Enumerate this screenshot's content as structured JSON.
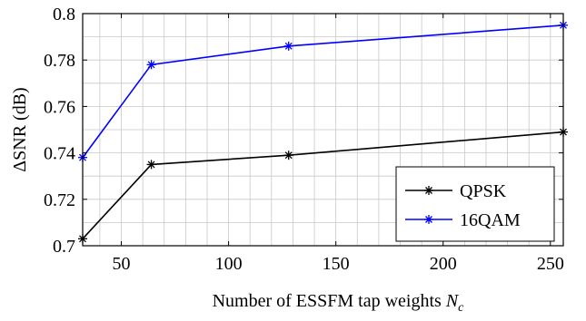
{
  "chart_data": {
    "type": "line",
    "xlabel": "Number of ESSFM tap weights ",
    "xlabel_sub": "N",
    "xlabel_subsub": "c",
    "ylabel": "ΔSNR (dB)",
    "xlim": [
      32,
      256
    ],
    "ylim": [
      0.7,
      0.8
    ],
    "xticks": [
      50,
      100,
      150,
      200,
      250
    ],
    "yticks": [
      0.7,
      0.72,
      0.74,
      0.76,
      0.78,
      0.8
    ],
    "ytick_labels": [
      "0.7",
      "0.72",
      "0.74",
      "0.76",
      "0.78",
      "0.8"
    ],
    "grid": true,
    "legend_position": "bottom-right",
    "series": [
      {
        "name": "QPSK",
        "color": "#000000",
        "marker": "star",
        "x": [
          32,
          64,
          128,
          256
        ],
        "y": [
          0.703,
          0.735,
          0.739,
          0.749
        ]
      },
      {
        "name": "16QAM",
        "color": "#0000ff",
        "marker": "star",
        "x": [
          32,
          64,
          128,
          256
        ],
        "y": [
          0.738,
          0.778,
          0.786,
          0.795
        ]
      }
    ]
  }
}
